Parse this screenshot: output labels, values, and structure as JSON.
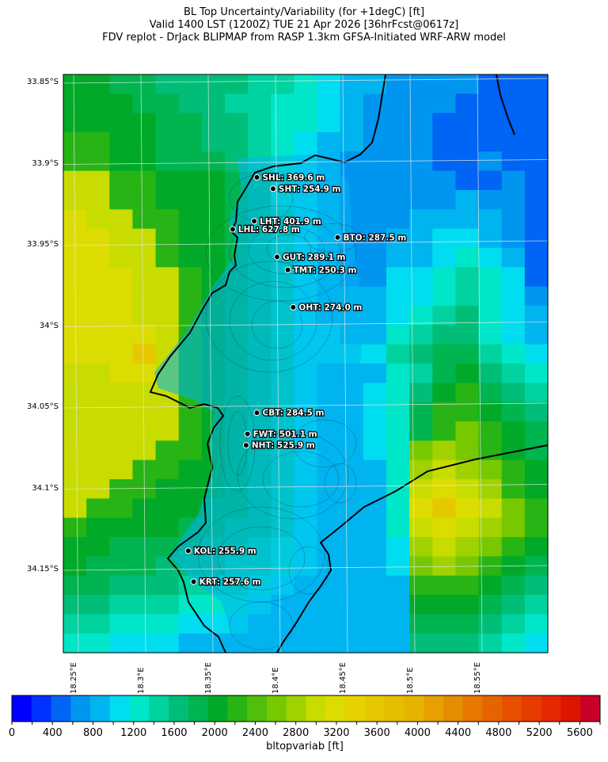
{
  "title": {
    "line1": "BL Top Uncertainty/Variability (for +1degC) [ft]",
    "line2": "Valid 1400 LST (1200Z) TUE 21 Apr 2026 [36hrFcst@0617z]",
    "line3": "FDV replot - DrJack BLIPMAP from RASP 1.3km GFSA-Initiated WRF-ARW model"
  },
  "map": {
    "lat_labels": [
      "33.85°S",
      "33.9°S",
      "33.95°S",
      "34°S",
      "34.05°S",
      "34.1°S",
      "34.15°S"
    ],
    "lon_labels": [
      "18.25°E",
      "18.3°E",
      "18.35°E",
      "18.4°E",
      "18.45°E",
      "18.5°E",
      "18.55°E"
    ],
    "stations": [
      {
        "label": "SHL: 369.6 m",
        "lon": 18.385,
        "lat": -33.908
      },
      {
        "label": "SHT: 254.9 m",
        "lon": 18.397,
        "lat": -33.915
      },
      {
        "label": "LHT: 401.9 m",
        "lon": 18.383,
        "lat": -33.935
      },
      {
        "label": "LHL: 627.8 m",
        "lon": 18.367,
        "lat": -33.94
      },
      {
        "label": "BTO: 287.5 m",
        "lon": 18.445,
        "lat": -33.945
      },
      {
        "label": "GUT: 289.1 m",
        "lon": 18.4,
        "lat": -33.957
      },
      {
        "label": "TMT: 250.3 m",
        "lon": 18.408,
        "lat": -33.965
      },
      {
        "label": "OHT: 274.0 m",
        "lon": 18.412,
        "lat": -33.988
      },
      {
        "label": "CBT: 284.5 m",
        "lon": 18.385,
        "lat": -34.053
      },
      {
        "label": "FWT: 501.1 m",
        "lon": 18.378,
        "lat": -34.066
      },
      {
        "label": "NHT: 525.9 m",
        "lon": 18.377,
        "lat": -34.073
      },
      {
        "label": "KOL: 255.9 m",
        "lon": 18.334,
        "lat": -34.138
      },
      {
        "label": "KRT: 257.6 m",
        "lon": 18.338,
        "lat": -34.157
      }
    ]
  },
  "colorbar": {
    "title": "bltopvariab [ft]",
    "tick_labels": [
      "0",
      "400",
      "800",
      "1200",
      "1600",
      "2000",
      "2400",
      "2800",
      "3200",
      "3600",
      "4000",
      "4400",
      "4800",
      "5200",
      "5600"
    ],
    "min": 0,
    "max": 5800,
    "step": 200,
    "colors": [
      "#0000ff",
      "#0032ff",
      "#0064f5",
      "#0096f0",
      "#00b4f0",
      "#00dcf0",
      "#00e6c8",
      "#00d2a0",
      "#00be78",
      "#00b450",
      "#00aa28",
      "#28b414",
      "#50be0a",
      "#78c800",
      "#a0d200",
      "#c8dc00",
      "#dcdc00",
      "#e6d200",
      "#e6c800",
      "#e6be00",
      "#e6b400",
      "#e6a000",
      "#e68c00",
      "#e67800",
      "#e66400",
      "#e65000",
      "#e63c00",
      "#e62800",
      "#dc1400",
      "#c80028"
    ]
  },
  "grid_colors": {
    "c0": "#0064f5",
    "c1": "#0096f0",
    "c2": "#00b4f0",
    "c3": "#00dcf0",
    "c4": "#00e6c8",
    "c5": "#00d2a0",
    "c6": "#00be78",
    "c7": "#00b450",
    "c8": "#00aa28",
    "c9": "#28b414",
    "cA": "#78c800",
    "cB": "#a0d200",
    "cC": "#c8dc00",
    "cD": "#dcdc00",
    "cE": "#e6c800"
  }
}
